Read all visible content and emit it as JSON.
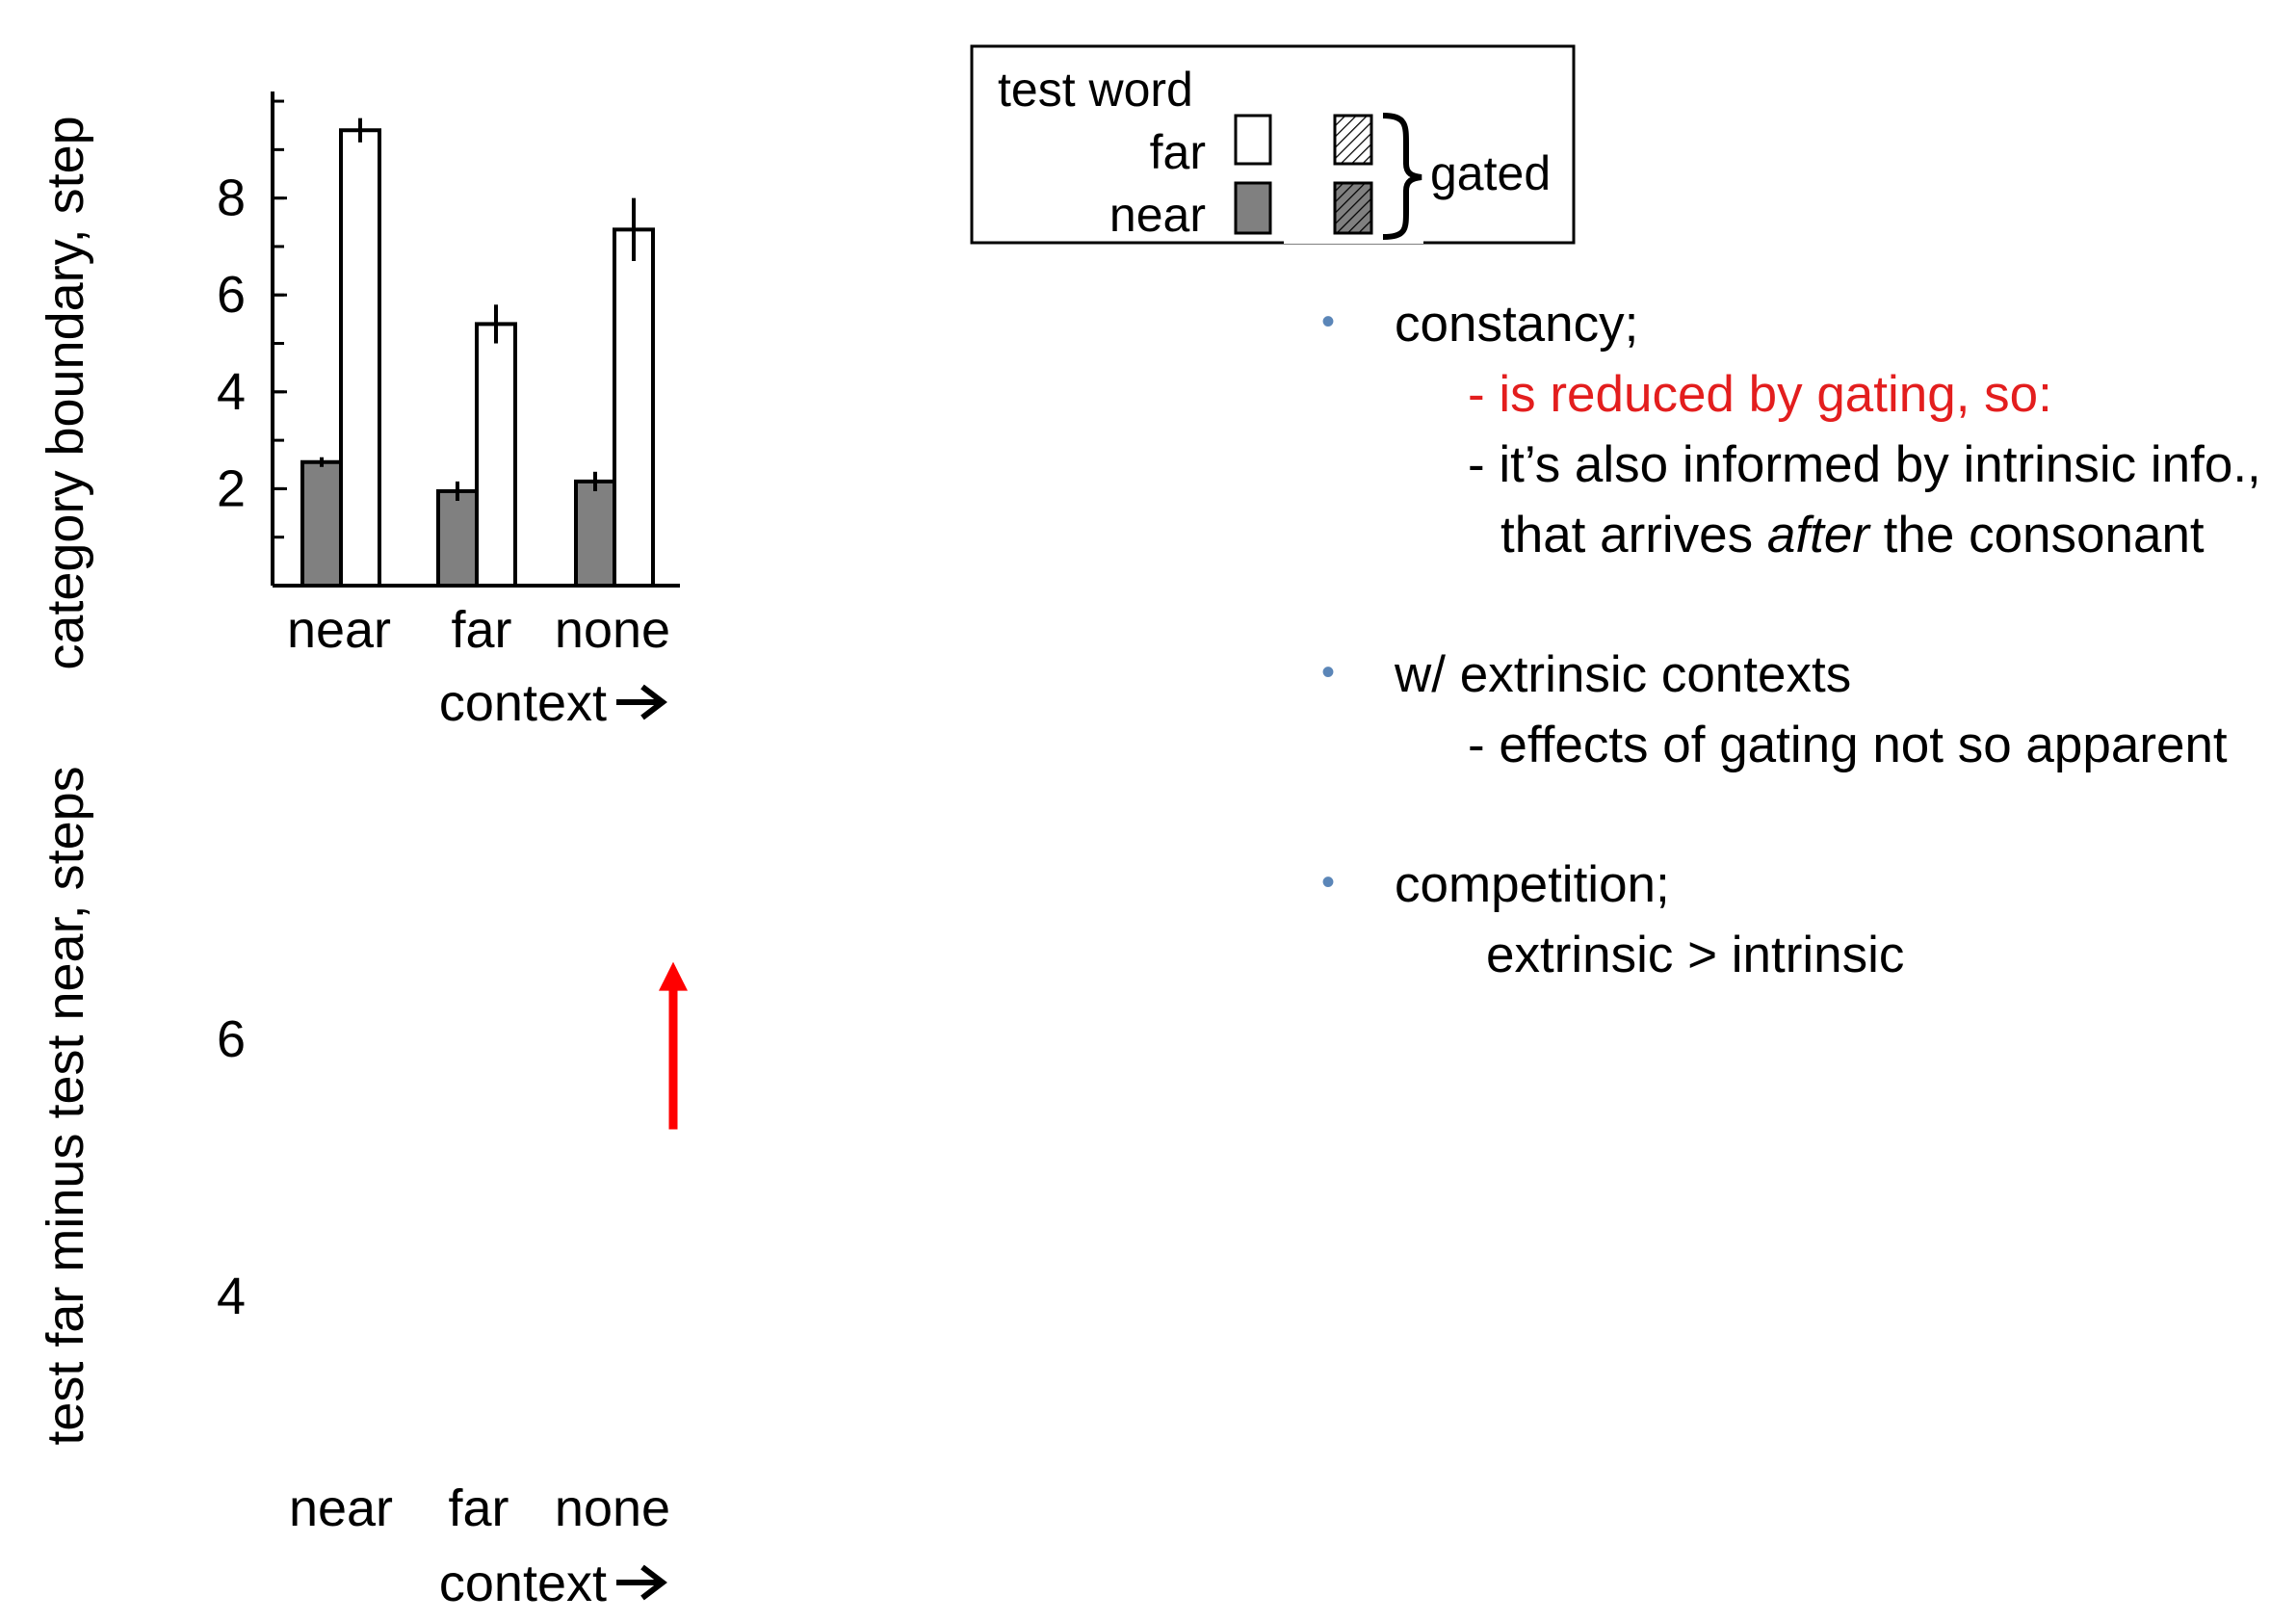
{
  "chart_data": [
    {
      "type": "bar",
      "ylabel": "category boundary, step",
      "xlabel": "context",
      "categories": [
        "near",
        "far",
        "none"
      ],
      "yticks": [
        2,
        4,
        6,
        8
      ],
      "ylim": [
        0,
        10.2
      ],
      "series": [
        {
          "name": "near",
          "color": "#808080",
          "values": [
            2.55,
            1.95,
            2.15
          ],
          "errors": [
            0.1,
            0.2,
            0.2
          ]
        },
        {
          "name": "far",
          "color": "#ffffff",
          "values": [
            9.4,
            5.4,
            7.35
          ],
          "errors": [
            0.25,
            0.4,
            0.65
          ]
        }
      ],
      "legend": {
        "title": "test word",
        "entries": [
          "far",
          "near"
        ],
        "gated_label": "gated"
      }
    },
    {
      "type": "bar",
      "ylabel": "test far minus test near, steps",
      "xlabel": "context",
      "categories": [
        "near",
        "far",
        "none"
      ],
      "yticks": [
        4,
        6
      ],
      "ylim": [
        2.7,
        7.6
      ],
      "series": [],
      "annotation": {
        "type": "arrow",
        "color": "#ff0000",
        "from_y": 5.3,
        "to_y": 6.6
      }
    }
  ],
  "notes": {
    "b1": {
      "title": "constancy;",
      "line1": "- is reduced by gating, so:",
      "line2": "- it’s also informed by intrinsic info.,",
      "line3_a": "that arrives ",
      "line3_em": "after",
      "line3_b": " the consonant"
    },
    "b2": {
      "title": "w/ extrinsic contexts",
      "line1": "- effects of gating not so apparent"
    },
    "b3": {
      "title": "competition;",
      "line1": "extrinsic > intrinsic"
    }
  },
  "colors": {
    "bullet": "#5b86b8",
    "highlight": "#e31e1e",
    "arrow": "#ff0000"
  }
}
